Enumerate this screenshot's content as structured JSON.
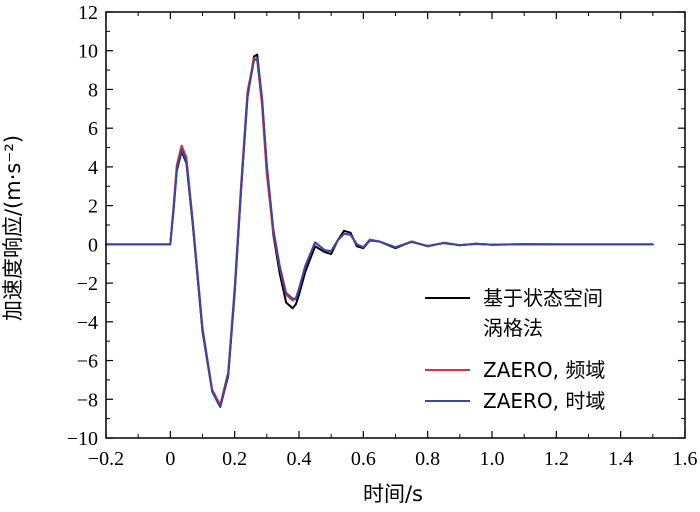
{
  "chart_data": {
    "type": "line",
    "xlabel": "时间/s",
    "ylabel": "加速度响应/(m·s⁻²)",
    "xlim": [
      -0.2,
      1.6
    ],
    "ylim": [
      -10,
      12
    ],
    "x_ticks": [
      "−0.2",
      "0",
      "0.2",
      "0.4",
      "0.6",
      "0.8",
      "1.0",
      "1.2",
      "1.4",
      "1.6"
    ],
    "y_ticks": [
      "−10",
      "−8",
      "−6",
      "−4",
      "−2",
      "0",
      "2",
      "4",
      "6",
      "8",
      "10",
      "12"
    ],
    "grid": false,
    "legend_position": "lower-right",
    "series": [
      {
        "name_lines": [
          "基于状态空间",
          "涡格法"
        ],
        "color": "#000000",
        "x": [
          -0.2,
          0.0,
          0.01,
          0.02,
          0.035,
          0.05,
          0.07,
          0.1,
          0.13,
          0.155,
          0.18,
          0.2,
          0.22,
          0.24,
          0.26,
          0.27,
          0.285,
          0.3,
          0.32,
          0.34,
          0.36,
          0.38,
          0.39,
          0.4,
          0.42,
          0.45,
          0.48,
          0.5,
          0.52,
          0.54,
          0.56,
          0.58,
          0.6,
          0.62,
          0.65,
          0.7,
          0.75,
          0.8,
          0.85,
          0.9,
          0.95,
          1.0,
          1.1,
          1.2,
          1.3,
          1.4,
          1.5
        ],
        "y": [
          0,
          0,
          1.8,
          3.8,
          4.8,
          4.2,
          1.0,
          -4.5,
          -7.6,
          -8.4,
          -6.8,
          -2.5,
          2.8,
          7.6,
          9.7,
          9.8,
          7.5,
          4.0,
          0.5,
          -1.5,
          -3.0,
          -3.3,
          -3.1,
          -2.6,
          -1.4,
          -0.1,
          -0.4,
          -0.5,
          0.2,
          0.7,
          0.6,
          -0.1,
          -0.2,
          0.2,
          0.15,
          -0.2,
          0.15,
          -0.1,
          0.08,
          -0.05,
          0.03,
          -0.02,
          0.01,
          0,
          0,
          0,
          0
        ]
      },
      {
        "name": "ZAERO, 频域",
        "color": "#e03030",
        "x": [
          -0.2,
          0.0,
          0.01,
          0.02,
          0.035,
          0.05,
          0.07,
          0.1,
          0.13,
          0.155,
          0.18,
          0.2,
          0.22,
          0.24,
          0.26,
          0.27,
          0.285,
          0.3,
          0.32,
          0.34,
          0.36,
          0.38,
          0.39,
          0.4,
          0.42,
          0.45,
          0.48,
          0.5,
          0.52,
          0.54,
          0.56,
          0.58,
          0.6,
          0.62,
          0.65,
          0.7,
          0.75,
          0.8,
          0.85,
          0.9,
          0.95,
          1.0,
          1.1,
          1.2,
          1.3,
          1.4,
          1.5
        ],
        "y": [
          0,
          0,
          2.0,
          4.1,
          5.1,
          4.5,
          1.2,
          -4.3,
          -7.5,
          -8.3,
          -6.6,
          -2.2,
          3.1,
          7.9,
          9.6,
          9.5,
          7.2,
          3.6,
          0.6,
          -1.2,
          -2.6,
          -2.9,
          -2.8,
          -2.3,
          -1.1,
          0.1,
          -0.3,
          -0.35,
          0.2,
          0.55,
          0.5,
          0.0,
          -0.15,
          0.25,
          0.15,
          -0.15,
          0.15,
          -0.1,
          0.08,
          -0.05,
          0.03,
          -0.02,
          0.01,
          0,
          0,
          0,
          0
        ]
      },
      {
        "name": "ZAERO, 时域",
        "color": "#3a46a8",
        "x": [
          -0.2,
          0.0,
          0.01,
          0.02,
          0.035,
          0.05,
          0.07,
          0.1,
          0.13,
          0.155,
          0.18,
          0.2,
          0.22,
          0.24,
          0.26,
          0.27,
          0.285,
          0.3,
          0.32,
          0.34,
          0.36,
          0.38,
          0.39,
          0.4,
          0.42,
          0.45,
          0.48,
          0.5,
          0.52,
          0.54,
          0.56,
          0.58,
          0.6,
          0.62,
          0.65,
          0.7,
          0.75,
          0.8,
          0.85,
          0.9,
          0.95,
          1.0,
          1.1,
          1.2,
          1.3,
          1.4,
          1.5
        ],
        "y": [
          0,
          0,
          1.9,
          3.9,
          4.9,
          4.3,
          1.1,
          -4.4,
          -7.6,
          -8.4,
          -6.7,
          -2.4,
          2.9,
          7.7,
          9.5,
          9.6,
          7.6,
          4.1,
          0.8,
          -1.1,
          -2.5,
          -2.8,
          -2.8,
          -2.3,
          -1.1,
          0.1,
          -0.3,
          -0.35,
          0.2,
          0.55,
          0.5,
          0.0,
          -0.15,
          0.2,
          0.15,
          -0.15,
          0.12,
          -0.08,
          0.06,
          -0.04,
          0.02,
          -0.01,
          0.01,
          0,
          0,
          0,
          0
        ]
      }
    ]
  }
}
